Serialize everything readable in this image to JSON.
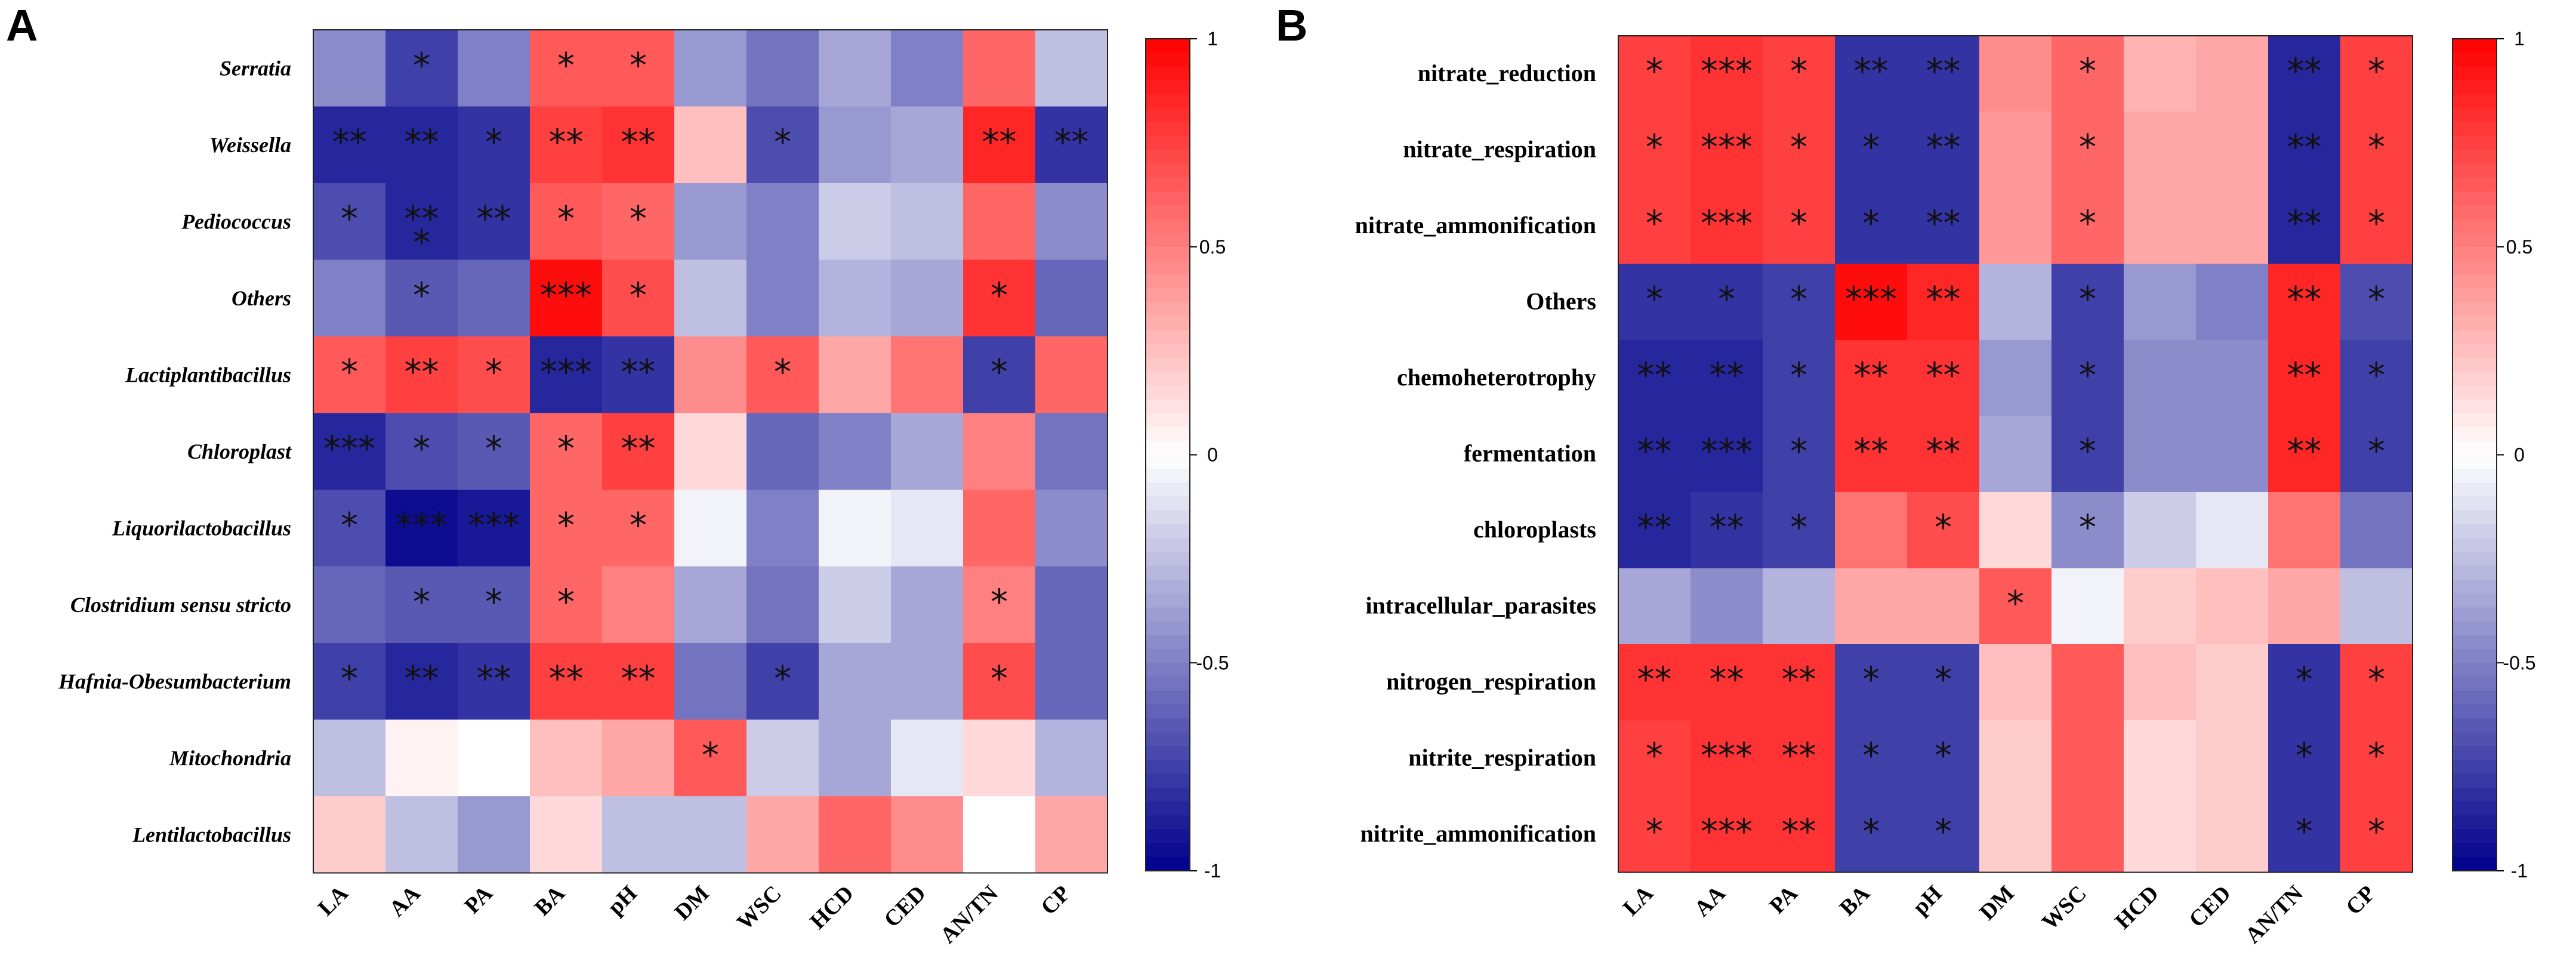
{
  "chart_data": [
    {
      "panel": "A",
      "type": "heatmap",
      "rows": [
        "Serratia",
        "Weissella",
        "Pediococcus",
        "Others",
        "Lactiplantibacillus",
        "Chloroplast",
        "Liquorilactobacillus",
        "Clostridium sensu stricto",
        "Hafnia-Obesumbacterium",
        "Mitochondria",
        "Lentilactobacillus"
      ],
      "columns": [
        "LA",
        "AA",
        "PA",
        "BA",
        "pH",
        "DM",
        "WSC",
        "HCD",
        "CED",
        "AN/TN",
        "CP"
      ],
      "values": [
        [
          -0.45,
          -0.75,
          -0.5,
          0.65,
          0.65,
          -0.4,
          -0.55,
          -0.35,
          -0.5,
          0.6,
          -0.25
        ],
        [
          -0.85,
          -0.85,
          -0.8,
          0.75,
          0.8,
          0.25,
          -0.7,
          -0.4,
          -0.35,
          0.85,
          -0.8
        ],
        [
          -0.7,
          -0.85,
          -0.8,
          0.65,
          0.6,
          -0.4,
          -0.5,
          -0.2,
          -0.25,
          0.6,
          -0.45
        ],
        [
          -0.5,
          -0.65,
          -0.6,
          0.95,
          0.7,
          -0.25,
          -0.5,
          -0.3,
          -0.35,
          0.8,
          -0.6
        ],
        [
          0.65,
          0.75,
          0.7,
          -0.85,
          -0.8,
          0.45,
          0.65,
          0.35,
          0.55,
          -0.75,
          0.6
        ],
        [
          -0.85,
          -0.7,
          -0.65,
          0.6,
          0.75,
          0.15,
          -0.6,
          -0.5,
          -0.35,
          0.5,
          -0.55
        ],
        [
          -0.7,
          -0.95,
          -0.9,
          0.6,
          0.6,
          -0.05,
          -0.5,
          -0.05,
          -0.1,
          0.6,
          -0.45
        ],
        [
          -0.6,
          -0.65,
          -0.65,
          0.6,
          0.5,
          -0.35,
          -0.55,
          -0.2,
          -0.35,
          0.5,
          -0.6
        ],
        [
          -0.75,
          -0.85,
          -0.8,
          0.75,
          0.75,
          -0.55,
          -0.75,
          -0.35,
          -0.35,
          0.7,
          -0.6
        ],
        [
          -0.25,
          0.05,
          0.0,
          0.25,
          0.35,
          0.65,
          -0.2,
          -0.35,
          -0.1,
          0.15,
          -0.3
        ],
        [
          0.2,
          -0.25,
          -0.4,
          0.15,
          -0.25,
          -0.25,
          0.35,
          0.6,
          0.45,
          0.0,
          0.35
        ]
      ],
      "significance": [
        [
          "",
          "*",
          "",
          "*",
          "*",
          "",
          "",
          "",
          "",
          "",
          ""
        ],
        [
          "**",
          "**",
          "*",
          "**",
          "**",
          "",
          "*",
          "",
          "",
          "**",
          "**"
        ],
        [
          "*",
          "**\n*",
          "**",
          "*",
          "*",
          "",
          "",
          "",
          "",
          "",
          ""
        ],
        [
          "",
          "*",
          "",
          "***",
          "*",
          "",
          "",
          "",
          "",
          "*",
          ""
        ],
        [
          "*",
          "**",
          "*",
          "***",
          "**",
          "",
          "*",
          "",
          "",
          "*",
          ""
        ],
        [
          "***",
          "*",
          "*",
          "*",
          "**",
          "",
          "",
          "",
          "",
          "",
          ""
        ],
        [
          "*",
          "***",
          "***",
          "*",
          "*",
          "",
          "",
          "",
          "",
          "",
          ""
        ],
        [
          "",
          "*",
          "*",
          "*",
          "",
          "",
          "",
          "",
          "",
          "*",
          ""
        ],
        [
          "*",
          "**",
          "**",
          "**",
          "**",
          "",
          "*",
          "",
          "",
          "*",
          ""
        ],
        [
          "",
          "",
          "",
          "",
          "",
          "*",
          "",
          "",
          "",
          "",
          ""
        ],
        [
          "",
          "",
          "",
          "",
          "",
          "",
          "",
          "",
          "",
          "",
          ""
        ]
      ],
      "colorbar": {
        "range": [
          -1,
          1
        ],
        "ticks": [
          "1",
          "0.5",
          "0",
          "-0.5",
          "-1"
        ]
      }
    },
    {
      "panel": "B",
      "type": "heatmap",
      "rows": [
        "nitrate_reduction",
        "nitrate_respiration",
        "nitrate_ammonification",
        "Others",
        "chemoheterotrophy",
        "fermentation",
        "chloroplasts",
        "intracellular_parasites",
        "nitrogen_respiration",
        "nitrite_respiration",
        "nitrite_ammonification"
      ],
      "columns": [
        "LA",
        "AA",
        "PA",
        "BA",
        "pH",
        "DM",
        "WSC",
        "HCD",
        "CED",
        "AN/TN",
        "CP"
      ],
      "values": [
        [
          0.75,
          0.8,
          0.75,
          -0.8,
          -0.8,
          0.45,
          0.6,
          0.3,
          0.35,
          -0.85,
          0.75
        ],
        [
          0.75,
          0.8,
          0.75,
          -0.8,
          -0.8,
          0.4,
          0.6,
          0.35,
          0.35,
          -0.85,
          0.75
        ],
        [
          0.75,
          0.8,
          0.75,
          -0.8,
          -0.8,
          0.4,
          0.6,
          0.35,
          0.35,
          -0.85,
          0.75
        ],
        [
          -0.8,
          -0.8,
          -0.75,
          0.95,
          0.85,
          -0.3,
          -0.75,
          -0.4,
          -0.5,
          0.85,
          -0.7
        ],
        [
          -0.85,
          -0.85,
          -0.75,
          0.8,
          0.8,
          -0.4,
          -0.75,
          -0.45,
          -0.45,
          0.85,
          -0.75
        ],
        [
          -0.85,
          -0.85,
          -0.75,
          0.8,
          0.8,
          -0.35,
          -0.75,
          -0.45,
          -0.45,
          0.85,
          -0.75
        ],
        [
          -0.85,
          -0.8,
          -0.75,
          0.55,
          0.7,
          0.15,
          -0.45,
          -0.2,
          -0.1,
          0.55,
          -0.55
        ],
        [
          -0.35,
          -0.45,
          -0.3,
          0.35,
          0.35,
          0.65,
          -0.05,
          0.2,
          0.25,
          0.35,
          -0.25
        ],
        [
          0.8,
          0.8,
          0.8,
          -0.75,
          -0.75,
          0.25,
          0.65,
          0.25,
          0.2,
          -0.8,
          0.75
        ],
        [
          0.75,
          0.8,
          0.8,
          -0.75,
          -0.75,
          0.2,
          0.65,
          0.15,
          0.2,
          -0.8,
          0.75
        ],
        [
          0.75,
          0.8,
          0.8,
          -0.75,
          -0.75,
          0.2,
          0.65,
          0.15,
          0.2,
          -0.8,
          0.75
        ]
      ],
      "significance": [
        [
          "*",
          "***",
          "*",
          "**",
          "**",
          "",
          "*",
          "",
          "",
          "**",
          "*"
        ],
        [
          "*",
          "***",
          "*",
          "*",
          "**",
          "",
          "*",
          "",
          "",
          "**",
          "*"
        ],
        [
          "*",
          "***",
          "*",
          "*",
          "**",
          "",
          "*",
          "",
          "",
          "**",
          "*"
        ],
        [
          "*",
          "*",
          "*",
          "***",
          "**",
          "",
          "*",
          "",
          "",
          "**",
          "*"
        ],
        [
          "**",
          "**",
          "*",
          "**",
          "**",
          "",
          "*",
          "",
          "",
          "**",
          "*"
        ],
        [
          "**",
          "***",
          "*",
          "**",
          "**",
          "",
          "*",
          "",
          "",
          "**",
          "*"
        ],
        [
          "**",
          "**",
          "*",
          "",
          "*",
          "",
          "*",
          "",
          "",
          "",
          ""
        ],
        [
          "",
          "",
          "",
          "",
          "",
          "*",
          "",
          "",
          "",
          "",
          ""
        ],
        [
          "**",
          "**",
          "**",
          "*",
          "*",
          "",
          "",
          "",
          "",
          "*",
          "*"
        ],
        [
          "*",
          "***",
          "**",
          "*",
          "*",
          "",
          "",
          "",
          "",
          "*",
          "*"
        ],
        [
          "*",
          "***",
          "**",
          "*",
          "*",
          "",
          "",
          "",
          "",
          "*",
          "*"
        ]
      ],
      "colorbar": {
        "range": [
          -1,
          1
        ],
        "ticks": [
          "1",
          "0.5",
          "0",
          "-0.5",
          "-1"
        ]
      }
    }
  ]
}
